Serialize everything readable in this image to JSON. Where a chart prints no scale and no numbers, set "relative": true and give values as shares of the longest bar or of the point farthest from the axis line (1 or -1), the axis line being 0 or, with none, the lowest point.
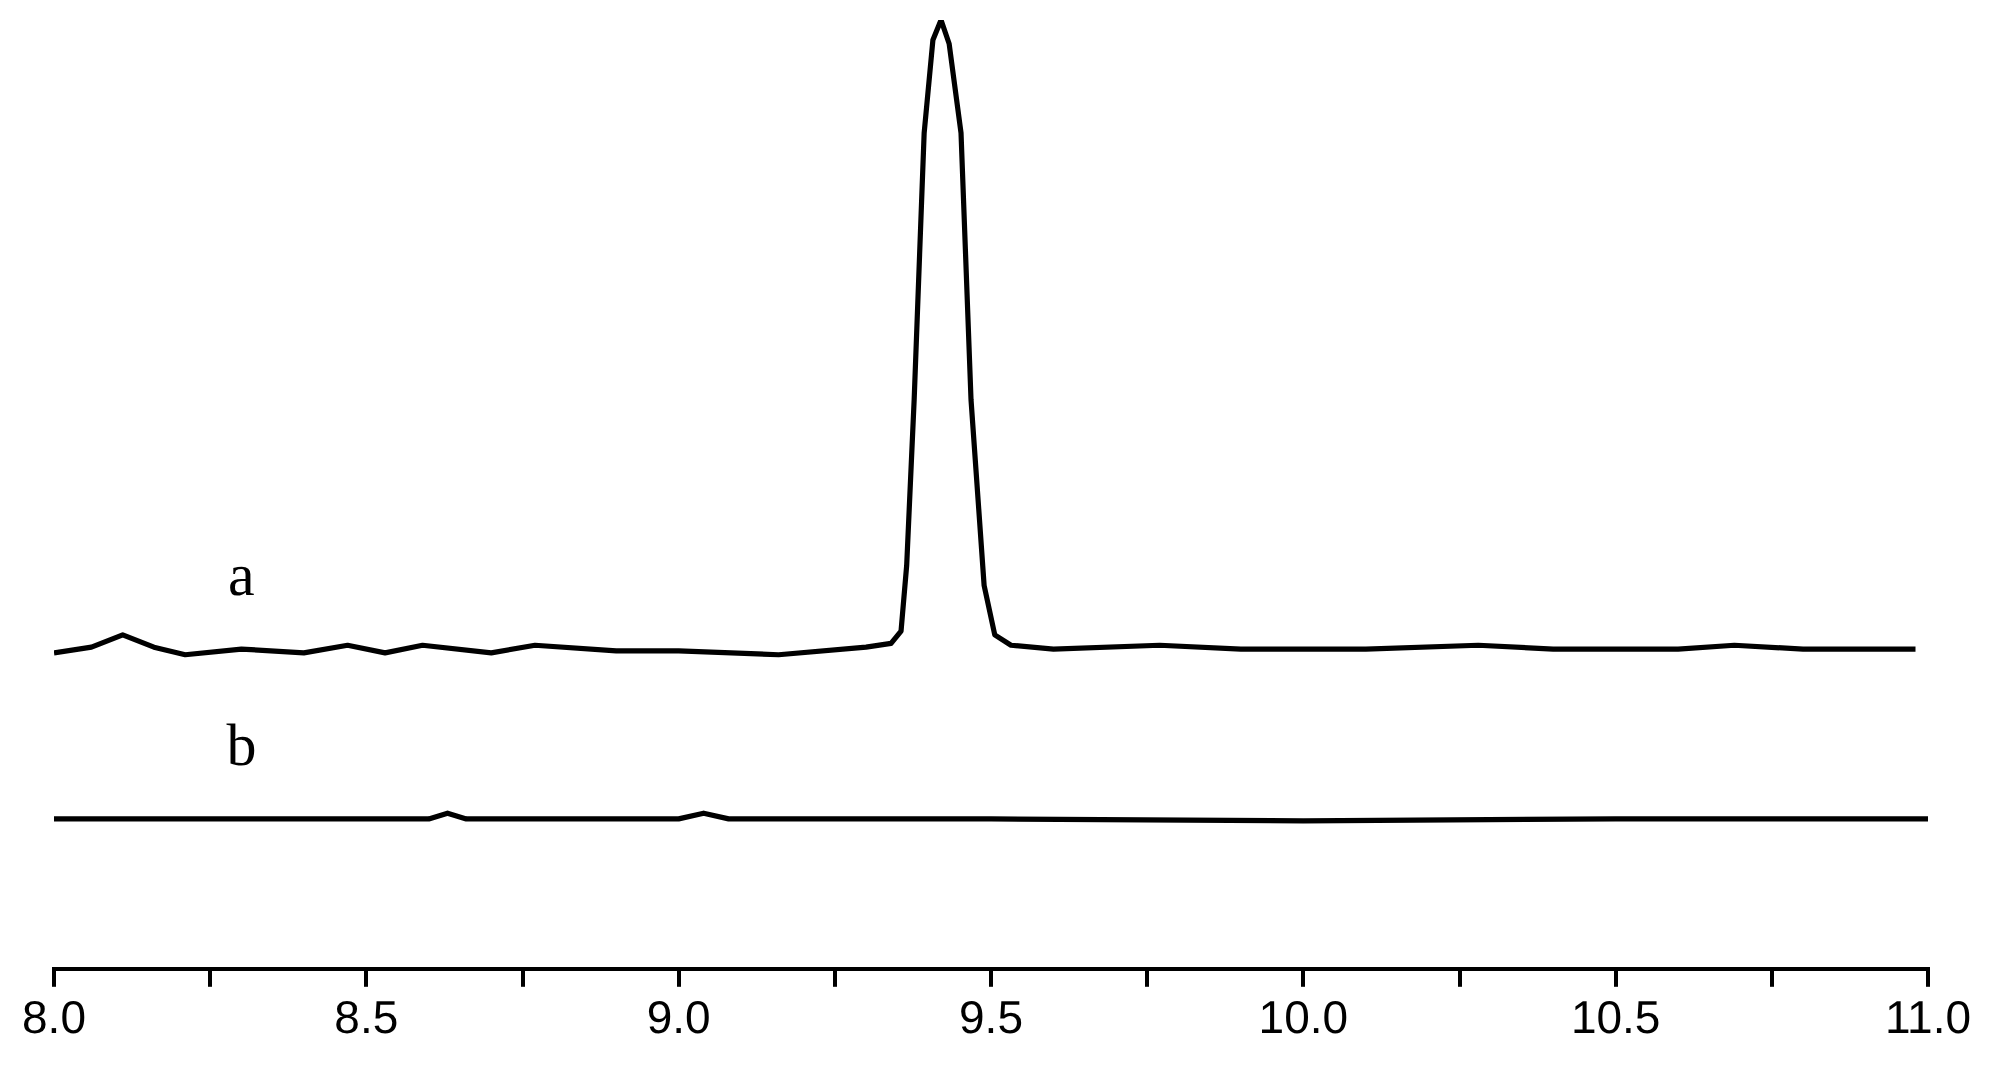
{
  "chart_data": {
    "type": "line",
    "relative": true,
    "grid": false,
    "legend": false,
    "marker": "none",
    "line_style": "solid",
    "tick_labels": "x",
    "xlim": [
      8.0,
      11.0
    ],
    "xticks": [
      {
        "value": 8.0,
        "label": "8.0"
      },
      {
        "value": 8.25,
        "label": null
      },
      {
        "value": 8.5,
        "label": "8.5"
      },
      {
        "value": 8.75,
        "label": null
      },
      {
        "value": 9.0,
        "label": "9.0"
      },
      {
        "value": 9.25,
        "label": null
      },
      {
        "value": 9.5,
        "label": "9.5"
      },
      {
        "value": 9.75,
        "label": null
      },
      {
        "value": 10.0,
        "label": "10.0"
      },
      {
        "value": 10.25,
        "label": null
      },
      {
        "value": 10.5,
        "label": "10.5"
      },
      {
        "value": 10.75,
        "label": null
      },
      {
        "value": 11.0,
        "label": "11.0"
      }
    ],
    "series": [
      {
        "name": "a",
        "color": "#000000",
        "x": [
          8.0,
          8.06,
          8.11,
          8.16,
          8.21,
          8.3,
          8.4,
          8.47,
          8.53,
          8.59,
          8.7,
          8.77,
          8.9,
          9.0,
          9.16,
          9.3,
          9.34,
          9.356,
          9.365,
          9.377,
          9.393,
          9.407,
          9.42,
          9.433,
          9.452,
          9.468,
          9.489,
          9.506,
          9.532,
          9.6,
          9.77,
          9.9,
          10.1,
          10.28,
          10.4,
          10.6,
          10.69,
          10.8,
          10.98
        ],
        "values": [
          0.333,
          0.339,
          0.352,
          0.339,
          0.331,
          0.337,
          0.333,
          0.341,
          0.333,
          0.341,
          0.333,
          0.341,
          0.335,
          0.335,
          0.331,
          0.339,
          0.343,
          0.356,
          0.425,
          0.6,
          0.881,
          0.979,
          1.0,
          0.975,
          0.881,
          0.6,
          0.404,
          0.352,
          0.341,
          0.337,
          0.341,
          0.337,
          0.337,
          0.341,
          0.337,
          0.337,
          0.341,
          0.337,
          0.337
        ]
      },
      {
        "name": "b",
        "color": "#000000",
        "x": [
          8.0,
          8.3,
          8.6,
          8.63,
          8.66,
          9.0,
          9.04,
          9.08,
          9.5,
          10.0,
          10.5,
          11.0
        ],
        "values": [
          0.158,
          0.158,
          0.158,
          0.164,
          0.158,
          0.158,
          0.164,
          0.158,
          0.158,
          0.156,
          0.158,
          0.158
        ]
      }
    ]
  }
}
